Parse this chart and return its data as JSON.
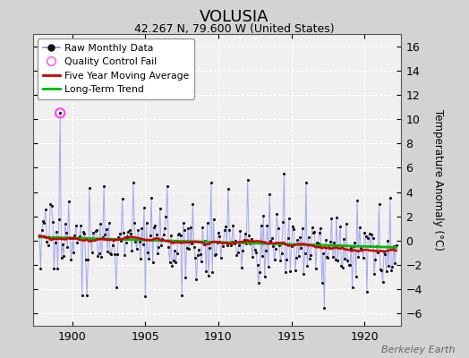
{
  "title": "VOLUSIA",
  "subtitle": "42.267 N, 79.600 W (United States)",
  "ylabel": "Temperature Anomaly (°C)",
  "watermark": "Berkeley Earth",
  "ylim": [
    -7,
    17
  ],
  "yticks": [
    -6,
    -4,
    -2,
    0,
    2,
    4,
    6,
    8,
    10,
    12,
    14,
    16
  ],
  "xlim": [
    1897.3,
    1922.5
  ],
  "xticks": [
    1900,
    1905,
    1910,
    1915,
    1920
  ],
  "bg_color": "#d3d3d3",
  "plot_bg": "#f0f0f0",
  "grid_color": "#ffffff",
  "raw_line_color": "#8888ee",
  "raw_marker_color": "#111111",
  "qc_fail_color": "#ff44ff",
  "moving_avg_color": "#cc0000",
  "trend_color": "#00bb00",
  "seed": 17
}
